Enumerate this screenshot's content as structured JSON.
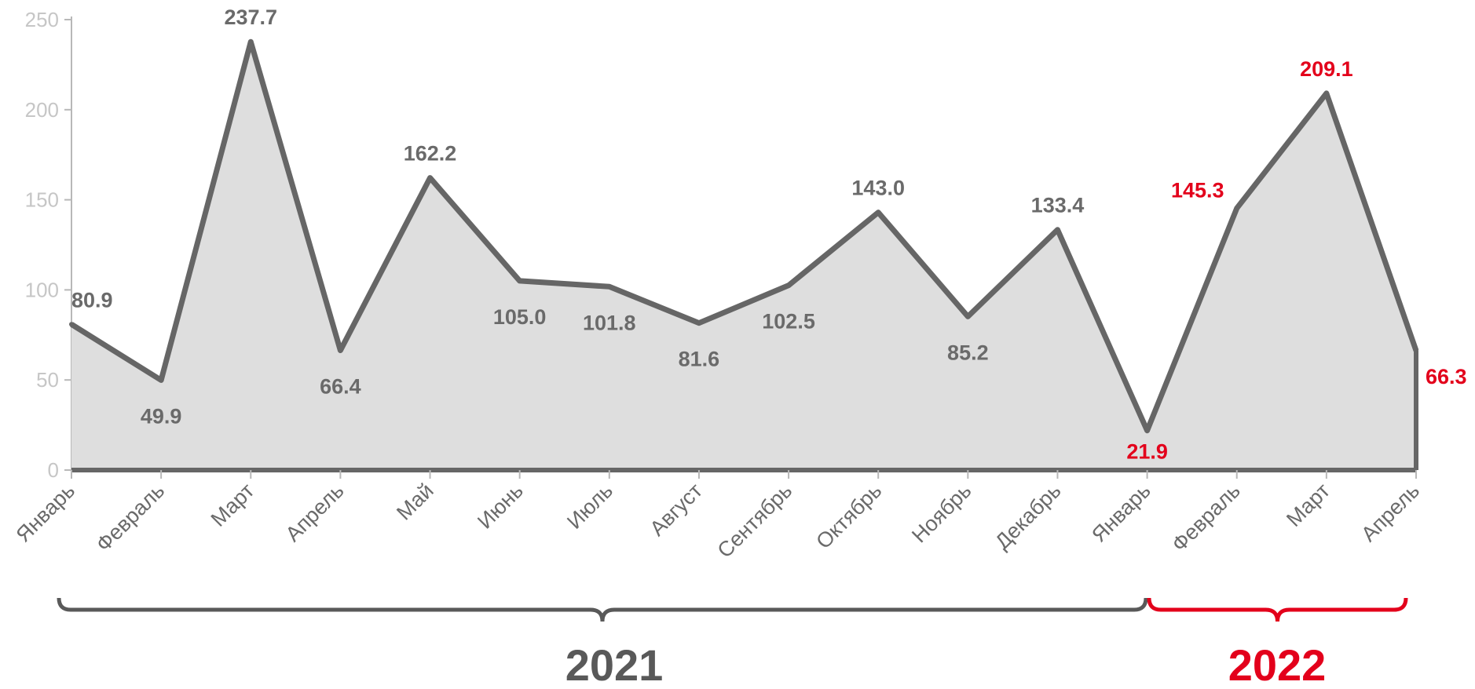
{
  "chart_data": {
    "type": "area",
    "categories": [
      "Январь",
      "Февраль",
      "Март",
      "Апрель",
      "Май",
      "Июнь",
      "Июль",
      "Август",
      "Сентябрь",
      "Октябрь",
      "Ноябрь",
      "Декабрь",
      "Январь",
      "Февраль",
      "Март",
      "Апрель"
    ],
    "values": [
      80.9,
      49.9,
      237.7,
      66.4,
      162.2,
      105.0,
      101.8,
      81.6,
      102.5,
      143.0,
      85.2,
      133.4,
      21.9,
      145.3,
      209.1,
      66.3
    ],
    "data_labels": [
      "80.9",
      "49.9",
      "237.7",
      "66.4",
      "162.2",
      "105.0",
      "101.8",
      "81.6",
      "102.5",
      "143.0",
      "85.2",
      "133.4",
      "21.9",
      "145.3",
      "209.1",
      "66.3"
    ],
    "label_positions": [
      "above",
      "below",
      "above",
      "below",
      "above",
      "below",
      "below",
      "below",
      "below",
      "above",
      "below",
      "above",
      "below",
      "above",
      "above",
      "right"
    ],
    "ylim": [
      0,
      250
    ],
    "yticks": [
      0,
      50,
      100,
      150,
      200,
      250
    ],
    "ytick_labels": [
      "0",
      "50",
      "100",
      "150",
      "200",
      "250"
    ],
    "grid": false,
    "title": "",
    "xlabel": "",
    "ylabel": "",
    "year_groups": [
      {
        "label": "2021",
        "start_index": 0,
        "end_index": 12,
        "color": "#595959"
      },
      {
        "label": "2022",
        "start_index": 12,
        "end_index": 15,
        "color": "#e3001b"
      }
    ],
    "colors": {
      "line": "#666666",
      "fill": "#dedede",
      "label_2021": "#6a6a6a",
      "label_2022": "#e3001b",
      "axis": "#b8b8b8"
    }
  }
}
